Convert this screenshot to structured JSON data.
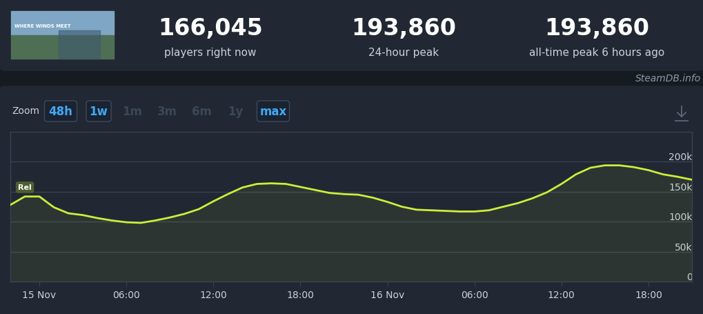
{
  "header": {
    "thumbnail_text": "WHERE WINDS MEET",
    "stats": [
      {
        "value": "166,045",
        "label": "players right now"
      },
      {
        "value": "193,860",
        "label": "24-hour peak"
      },
      {
        "value": "193,860",
        "label": "all-time peak 6 hours ago"
      }
    ]
  },
  "source": "SteamDB.info",
  "zoom": {
    "label": "Zoom",
    "buttons": [
      {
        "label": "48h",
        "enabled": true
      },
      {
        "label": "1w",
        "enabled": true
      },
      {
        "label": "1m",
        "enabled": false
      },
      {
        "label": "3m",
        "enabled": false
      },
      {
        "label": "6m",
        "enabled": false
      },
      {
        "label": "1y",
        "enabled": false
      },
      {
        "label": "max",
        "enabled": true
      }
    ]
  },
  "chart_data": {
    "type": "line",
    "color": "#cdee3a",
    "x": [
      -2,
      -1,
      0,
      1,
      2,
      3,
      4,
      5,
      6,
      7,
      8,
      9,
      10,
      11,
      12,
      13,
      14,
      15,
      16,
      17,
      18,
      19,
      20,
      21,
      22,
      23,
      24,
      25,
      26,
      27,
      28,
      29,
      30,
      31,
      32,
      33,
      34,
      35,
      36,
      37,
      38,
      39,
      40,
      41,
      42,
      43,
      44,
      45
    ],
    "values": [
      128000,
      142000,
      142000,
      124000,
      114000,
      111000,
      106000,
      102000,
      99000,
      98000,
      102000,
      107000,
      113000,
      121000,
      134000,
      146000,
      157000,
      163000,
      164000,
      163000,
      158000,
      153000,
      148000,
      146000,
      145000,
      140000,
      133000,
      125000,
      120000,
      119000,
      118000,
      117000,
      117000,
      119000,
      125000,
      131000,
      139000,
      149000,
      163000,
      179000,
      190000,
      194000,
      194000,
      191000,
      186000,
      179000,
      175000,
      170000
    ],
    "annotations": [
      {
        "text": "Rel",
        "x": -1
      }
    ],
    "xlim": [
      -2,
      45
    ],
    "xticks": [
      {
        "value": 0,
        "label": "15 Nov"
      },
      {
        "value": 6,
        "label": "06:00"
      },
      {
        "value": 12,
        "label": "12:00"
      },
      {
        "value": 18,
        "label": "18:00"
      },
      {
        "value": 24,
        "label": "16 Nov"
      },
      {
        "value": 30,
        "label": "06:00"
      },
      {
        "value": 36,
        "label": "12:00"
      },
      {
        "value": 42,
        "label": "18:00"
      }
    ],
    "ylim": [
      0,
      250000
    ],
    "yticks": [
      0,
      {
        "value": 50000,
        "label": "50k"
      },
      {
        "value": 100000,
        "label": "100k"
      },
      {
        "value": 150000,
        "label": "150k"
      },
      {
        "value": 200000,
        "label": "200k"
      }
    ],
    "grid": true
  }
}
